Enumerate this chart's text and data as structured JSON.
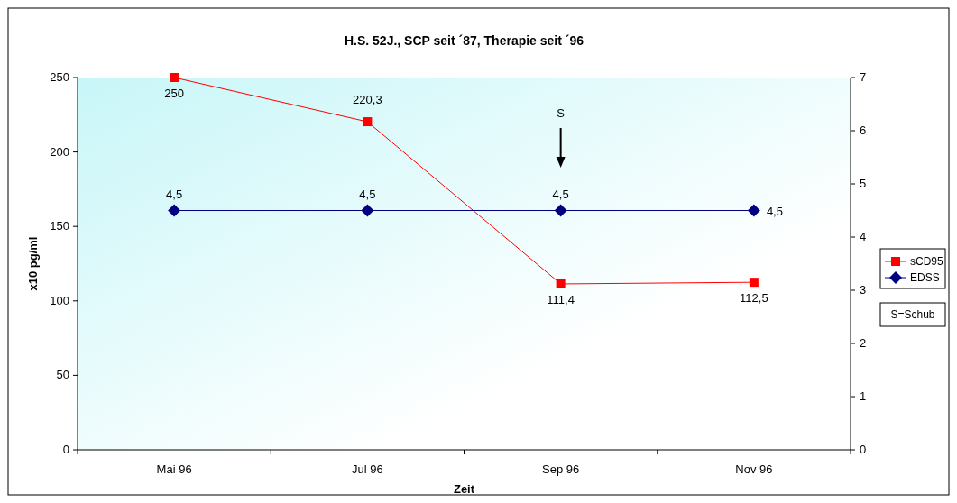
{
  "chart_data": {
    "type": "line",
    "title": "H.S. 52J., SCP seit ´87, Therapie seit ´96",
    "xlabel": "Zeit",
    "ylabel": "x10 pg/ml",
    "categories": [
      "Mai 96",
      "Jul 96",
      "Sep 96",
      "Nov 96"
    ],
    "series": [
      {
        "name": "sCD95",
        "color": "#ff0000",
        "marker": "square",
        "values": [
          250,
          220.3,
          111.4,
          112.5
        ],
        "value_labels": [
          "250",
          "220,3",
          "111,4",
          "112,5"
        ]
      },
      {
        "name": "EDSS",
        "color": "#000080",
        "marker": "diamond",
        "axis": "y2",
        "values": [
          4.5,
          4.5,
          4.5,
          4.5
        ],
        "value_labels": [
          "4,5",
          "4,5",
          "4,5",
          "4,5"
        ]
      }
    ],
    "ylim": [
      0,
      250
    ],
    "yticks": [
      0,
      50,
      100,
      150,
      200,
      250
    ],
    "y2lim": [
      0,
      7
    ],
    "y2ticks": [
      0,
      1,
      2,
      3,
      4,
      5,
      6,
      7
    ],
    "legend": "right",
    "grid": false,
    "annotations": [
      "S",
      "S=Schub"
    ]
  }
}
